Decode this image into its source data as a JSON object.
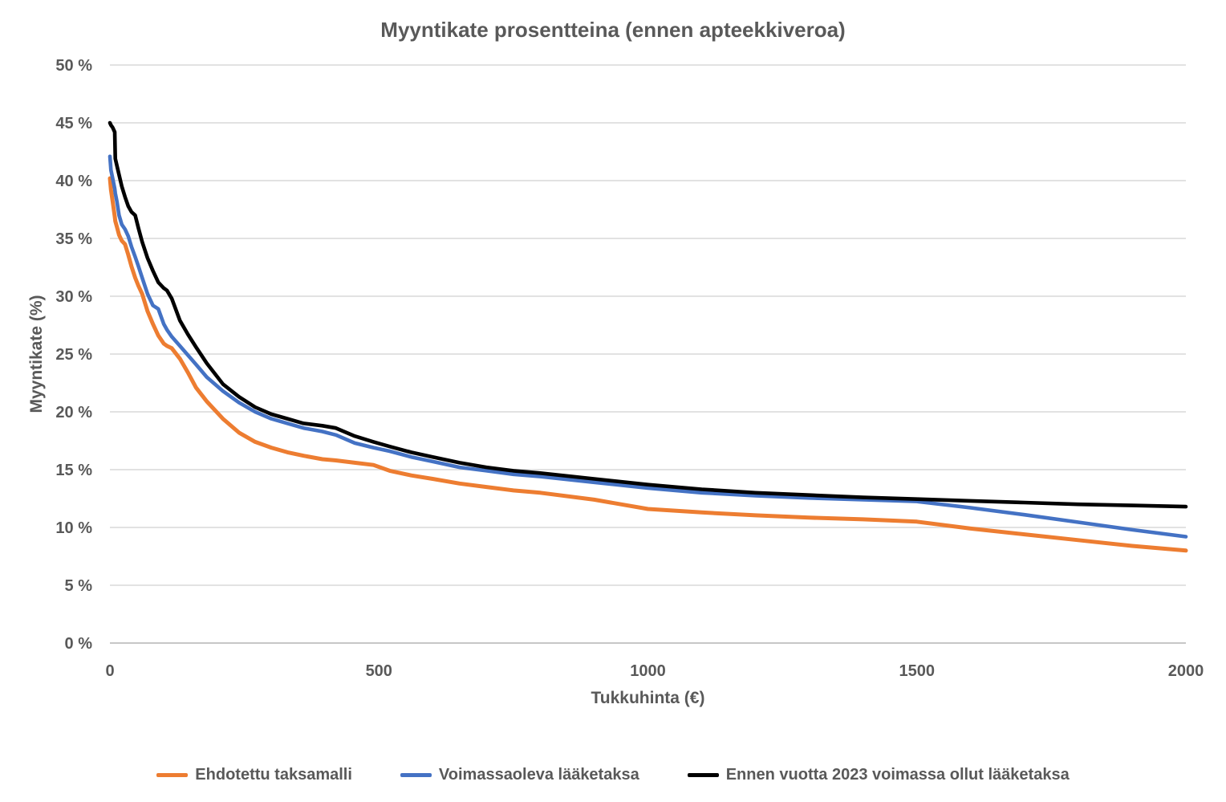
{
  "figure": {
    "title": "Myyntikate prosentteina (ennen apteekkiveroa)"
  },
  "axes": {
    "x": {
      "label": "Tukkuhinta (€)",
      "range": [
        0,
        2000
      ],
      "ticks": [
        {
          "value": 0,
          "label": "0"
        },
        {
          "value": 500,
          "label": "500"
        },
        {
          "value": 1000,
          "label": "1000"
        },
        {
          "value": 1500,
          "label": "1500"
        },
        {
          "value": 2000,
          "label": "2000"
        }
      ]
    },
    "y": {
      "label": "Myyntikate (%)",
      "range": [
        0,
        50
      ],
      "ticks": [
        {
          "value": 0,
          "label": "0 %"
        },
        {
          "value": 5,
          "label": "5 %"
        },
        {
          "value": 10,
          "label": "10 %"
        },
        {
          "value": 15,
          "label": "15 %"
        },
        {
          "value": 20,
          "label": "20 %"
        },
        {
          "value": 25,
          "label": "25 %"
        },
        {
          "value": 30,
          "label": "30 %"
        },
        {
          "value": 35,
          "label": "35 %"
        },
        {
          "value": 40,
          "label": "40 %"
        },
        {
          "value": 45,
          "label": "45 %"
        },
        {
          "value": 50,
          "label": "50 %"
        }
      ]
    }
  },
  "colors": {
    "gridline": "#D9D9D9",
    "axis_line": "#BFBFBF",
    "text": "#595959"
  },
  "chart_data": {
    "type": "line",
    "title": "Myyntikate prosentteina (ennen apteekkiveroa)",
    "xlabel": "Tukkuhinta (€)",
    "ylabel": "Myyntikate (%)",
    "xlim": [
      0,
      2000
    ],
    "ylim": [
      0,
      50
    ],
    "grid": "horizontal-only",
    "legend_position": "bottom",
    "series": [
      {
        "name": "Ehdotettu taksamalli",
        "color": "#ED7D31",
        "stroke_width": 5,
        "points": [
          [
            0,
            40.2
          ],
          [
            2,
            39.2
          ],
          [
            5,
            38.2
          ],
          [
            9,
            36.9
          ],
          [
            10,
            36.5
          ],
          [
            13,
            36.0
          ],
          [
            17,
            35.3
          ],
          [
            22,
            34.8
          ],
          [
            28,
            34.5
          ],
          [
            34,
            33.6
          ],
          [
            40,
            32.6
          ],
          [
            47,
            31.6
          ],
          [
            53,
            30.9
          ],
          [
            60,
            30.2
          ],
          [
            70,
            28.7
          ],
          [
            80,
            27.6
          ],
          [
            90,
            26.6
          ],
          [
            100,
            25.9
          ],
          [
            106,
            25.7
          ],
          [
            115,
            25.5
          ],
          [
            130,
            24.6
          ],
          [
            145,
            23.4
          ],
          [
            160,
            22.1
          ],
          [
            180,
            20.9
          ],
          [
            210,
            19.4
          ],
          [
            240,
            18.2
          ],
          [
            270,
            17.4
          ],
          [
            300,
            16.9
          ],
          [
            330,
            16.5
          ],
          [
            360,
            16.2
          ],
          [
            395,
            15.9
          ],
          [
            420,
            15.8
          ],
          [
            455,
            15.6
          ],
          [
            490,
            15.4
          ],
          [
            520,
            14.9
          ],
          [
            560,
            14.5
          ],
          [
            600,
            14.2
          ],
          [
            650,
            13.8
          ],
          [
            700,
            13.5
          ],
          [
            750,
            13.2
          ],
          [
            800,
            13.0
          ],
          [
            900,
            12.4
          ],
          [
            1000,
            11.6
          ],
          [
            1100,
            11.3
          ],
          [
            1200,
            11.05
          ],
          [
            1300,
            10.85
          ],
          [
            1400,
            10.7
          ],
          [
            1500,
            10.5
          ],
          [
            1600,
            9.9
          ],
          [
            1700,
            9.4
          ],
          [
            1800,
            8.9
          ],
          [
            1900,
            8.4
          ],
          [
            2000,
            8.0
          ]
        ]
      },
      {
        "name": "Voimassaoleva lääketaksa",
        "color": "#4472C4",
        "stroke_width": 4.6,
        "points": [
          [
            0,
            42.1
          ],
          [
            2,
            40.9
          ],
          [
            5,
            40.2
          ],
          [
            9,
            39.3
          ],
          [
            10,
            38.9
          ],
          [
            13,
            38.2
          ],
          [
            17,
            37.0
          ],
          [
            22,
            36.2
          ],
          [
            28,
            35.8
          ],
          [
            34,
            35.2
          ],
          [
            40,
            34.3
          ],
          [
            47,
            33.4
          ],
          [
            53,
            32.6
          ],
          [
            60,
            31.6
          ],
          [
            70,
            30.2
          ],
          [
            80,
            29.2
          ],
          [
            90,
            28.9
          ],
          [
            100,
            27.6
          ],
          [
            106,
            27.1
          ],
          [
            115,
            26.5
          ],
          [
            130,
            25.7
          ],
          [
            145,
            24.9
          ],
          [
            160,
            24.1
          ],
          [
            180,
            23.0
          ],
          [
            210,
            21.8
          ],
          [
            240,
            20.8
          ],
          [
            270,
            20.0
          ],
          [
            300,
            19.4
          ],
          [
            330,
            19.0
          ],
          [
            360,
            18.6
          ],
          [
            395,
            18.3
          ],
          [
            420,
            18.0
          ],
          [
            455,
            17.3
          ],
          [
            490,
            16.9
          ],
          [
            520,
            16.6
          ],
          [
            560,
            16.1
          ],
          [
            600,
            15.7
          ],
          [
            650,
            15.2
          ],
          [
            700,
            14.9
          ],
          [
            750,
            14.6
          ],
          [
            800,
            14.4
          ],
          [
            900,
            13.9
          ],
          [
            1000,
            13.4
          ],
          [
            1100,
            13.0
          ],
          [
            1200,
            12.75
          ],
          [
            1300,
            12.55
          ],
          [
            1400,
            12.4
          ],
          [
            1500,
            12.25
          ],
          [
            1600,
            11.7
          ],
          [
            1700,
            11.1
          ],
          [
            1800,
            10.45
          ],
          [
            1900,
            9.8
          ],
          [
            2000,
            9.2
          ]
        ]
      },
      {
        "name": "Ennen vuotta 2023 voimassa ollut lääketaksa",
        "color": "#000000",
        "stroke_width": 4.6,
        "points": [
          [
            0,
            45.0
          ],
          [
            2,
            44.8
          ],
          [
            5,
            44.6
          ],
          [
            9,
            44.2
          ],
          [
            10,
            41.9
          ],
          [
            13,
            41.3
          ],
          [
            17,
            40.5
          ],
          [
            22,
            39.5
          ],
          [
            28,
            38.6
          ],
          [
            34,
            37.8
          ],
          [
            40,
            37.3
          ],
          [
            47,
            37.0
          ],
          [
            53,
            35.9
          ],
          [
            60,
            34.7
          ],
          [
            70,
            33.3
          ],
          [
            80,
            32.2
          ],
          [
            90,
            31.2
          ],
          [
            100,
            30.7
          ],
          [
            106,
            30.5
          ],
          [
            115,
            29.8
          ],
          [
            130,
            27.9
          ],
          [
            145,
            26.7
          ],
          [
            160,
            25.6
          ],
          [
            180,
            24.2
          ],
          [
            210,
            22.4
          ],
          [
            240,
            21.3
          ],
          [
            270,
            20.4
          ],
          [
            300,
            19.8
          ],
          [
            330,
            19.4
          ],
          [
            360,
            19.0
          ],
          [
            395,
            18.8
          ],
          [
            420,
            18.6
          ],
          [
            455,
            17.9
          ],
          [
            490,
            17.4
          ],
          [
            520,
            17.0
          ],
          [
            560,
            16.5
          ],
          [
            600,
            16.1
          ],
          [
            650,
            15.6
          ],
          [
            700,
            15.2
          ],
          [
            750,
            14.9
          ],
          [
            800,
            14.7
          ],
          [
            900,
            14.2
          ],
          [
            1000,
            13.7
          ],
          [
            1100,
            13.3
          ],
          [
            1200,
            13.0
          ],
          [
            1300,
            12.8
          ],
          [
            1400,
            12.6
          ],
          [
            1500,
            12.45
          ],
          [
            1600,
            12.3
          ],
          [
            1700,
            12.15
          ],
          [
            1800,
            12.0
          ],
          [
            1900,
            11.9
          ],
          [
            2000,
            11.8
          ]
        ]
      }
    ]
  }
}
